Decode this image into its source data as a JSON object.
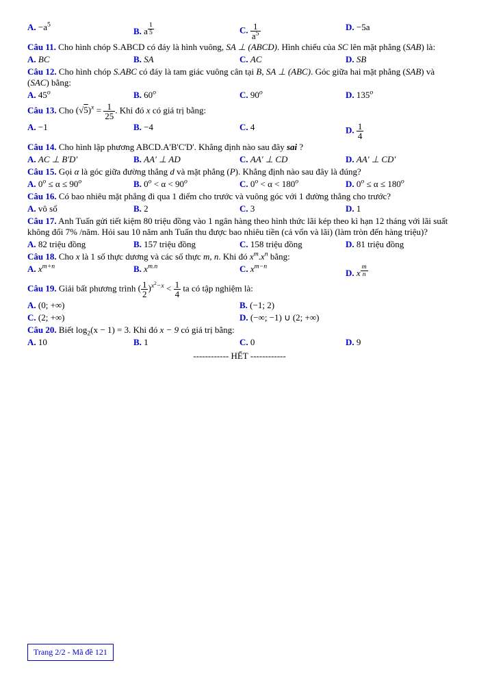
{
  "labels": {
    "A": "A.",
    "B": "B.",
    "C": "C.",
    "D": "D."
  },
  "qnums": {
    "q11": "Câu 11.",
    "q12": "Câu 12.",
    "q13": "Câu 13.",
    "q14": "Câu 14.",
    "q15": "Câu 15.",
    "q16": "Câu 16.",
    "q17": "Câu 17.",
    "q18": "Câu 18.",
    "q19": "Câu 19.",
    "q20": "Câu 20."
  },
  "q10o": {
    "a_pre": "−a",
    "a_exp": "5",
    "b_pre": "a",
    "b_num": "1",
    "b_den": "5",
    "c_num": "1",
    "c_den_pre": "a",
    "c_den_exp": "5",
    "d": "−5a"
  },
  "q11": {
    "text_p1": " Cho hình chóp S.ABCD có đáy là hình vuông, ",
    "text_p2": "SA ⊥ (ABCD)",
    "text_p3": ". Hình chiếu của ",
    "text_p4": "SC",
    "text_p5": " lên mặt phẳng (",
    "text_p6": "SAB",
    "text_p7": ") là:",
    "a": "BC",
    "b": "SA",
    "c": "AC",
    "d": "SB"
  },
  "q12": {
    "text_p1": " Cho hình chóp ",
    "text_p2": "S.ABC",
    "text_p3": " có đáy là tam giác vuông cân tại ",
    "text_p4": "B",
    "text_p5": ", ",
    "text_p6": "SA ⊥ (ABC)",
    "text_p7": ". Góc giữa hai mặt phẳng (",
    "text_p8": "SAB",
    "text_p9": ") và (",
    "text_p10": "SAC",
    "text_p11": ") bằng:",
    "a_base": "45",
    "a_exp": "o",
    "b_base": "60",
    "b_exp": "o",
    "c_base": "90",
    "c_exp": "o",
    "d_base": "135",
    "d_exp": "o"
  },
  "q13": {
    "text_p1": " Cho ",
    "lhs_pre": "(",
    "lhs_in": "5",
    "lhs_post": ")",
    "lhs_exp": "x",
    "eq": " = ",
    "rhs_num": "1",
    "rhs_den": "25",
    "text_p2": ". Khi đó ",
    "text_p3": "x",
    "text_p4": " có giá trị bằng:",
    "a": "−1",
    "b": "−4",
    "c": "4",
    "d_num": "1",
    "d_den": "4"
  },
  "q14": {
    "text_p1": " Cho hình lập phương ABCD.A'B'C'D'. Khẳng định nào sau đây ",
    "text_p2": "sai",
    "text_p3": " ?",
    "a": "AC ⊥ B'D'",
    "b": "AA' ⊥ AD",
    "c": "AA' ⊥ CD",
    "d": "AA' ⊥ CD'"
  },
  "q15": {
    "text_p1": " Gọi ",
    "alpha": "α",
    "text_p2": " là góc giữa đường thẳng ",
    "d": "d",
    "text_p3": " và mặt phẳng (",
    "P": "P",
    "text_p4": "). Khẳng định nào sau đây là đúng?",
    "a_pre": "0",
    "a_exp": "o",
    "a_mid": " ≤ α ≤ 90",
    "a_exp2": "o",
    "b_pre": "0",
    "b_mid": " < α < 90",
    "c_pre": "0",
    "c_mid": " < α < 180",
    "d_pre": "0",
    "d_mid": " ≤ α ≤ 180"
  },
  "q16": {
    "text": " Có bao nhiêu mặt phẳng đi qua 1 điểm cho trước và vuông góc với 1 đường thẳng cho trước?",
    "a": "vô số",
    "b": "2",
    "c": "3",
    "d": "1"
  },
  "q17": {
    "text": " Anh Tuấn gửi tiết kiệm 80 triệu đồng vào 1 ngân hàng theo hình thức lãi kép theo kì hạn 12 tháng với lãi suất không đổi 7% /năm. Hỏi sau 10 năm anh Tuấn thu được bao nhiêu tiền (cả vốn và lãi) (làm tròn đến hàng triệu)?",
    "a": "82 triệu đồng",
    "b": "157 triệu đồng",
    "c": "158 triệu đồng",
    "d": "81 triệu đồng"
  },
  "q18": {
    "text_p1": " Cho ",
    "x1": "x",
    "text_p2": " là 1 số thực dương và các số thực ",
    "mn": "m, n",
    "text_p3": ". Khi đó ",
    "xm": "x",
    "exp_m": "m",
    "dot": ".",
    "xn": "x",
    "exp_n": "n",
    "text_p4": " bằng:",
    "a_base": "x",
    "a_exp": "m+n",
    "b_base": "x",
    "b_exp": "m.n",
    "c_base": "x",
    "c_exp": "m−n",
    "d_base": "x",
    "d_num": "m",
    "d_den": "n"
  },
  "q19": {
    "text_p1": " Giải bất phương trình ",
    "lp": "(",
    "f_num": "1",
    "f_den": "2",
    "rp": ")",
    "exp": "x",
    "exp2_sup": "2",
    "exp_rest": "−x",
    "lt": " < ",
    "r_num": "1",
    "r_den": "4",
    "text_p2": " ta có tập nghiệm là:",
    "a": "(0; +∞)",
    "b": "(−1; 2)",
    "c": "(2; +∞)",
    "d": "(−∞; −1) ∪ (2; +∞)"
  },
  "q20": {
    "text_p1": " Biết log",
    "sub2": "2",
    "text_p2": "(x − 1) = 3. Khi đó ",
    "text_p3": "x − 9",
    "text_p4": " có giá trị bằng:",
    "a": "10",
    "b": "1",
    "c": "0",
    "d": "9"
  },
  "end": "------------ HẾT ------------",
  "footer": "Trang 2/2 - Mã đề 121"
}
